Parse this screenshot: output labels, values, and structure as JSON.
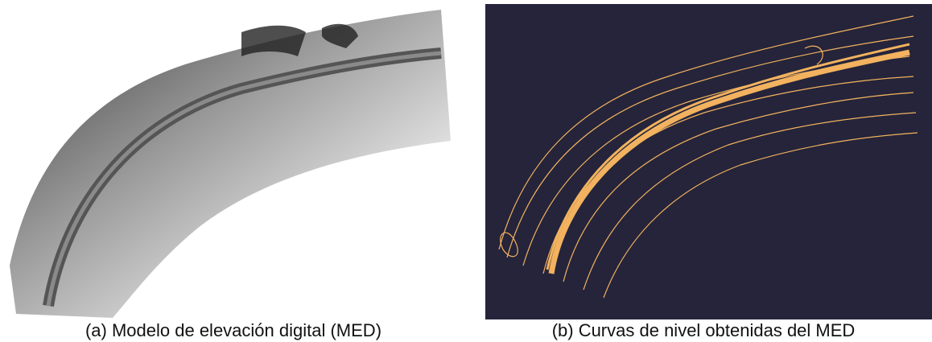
{
  "panels": [
    {
      "caption": "(a) Modelo de elevación digital (MED)"
    },
    {
      "caption": "(b) Curvas de nivel obtenidas del MED"
    }
  ]
}
